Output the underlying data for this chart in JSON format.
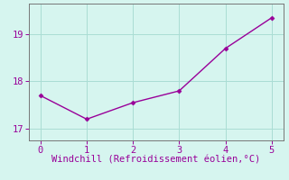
{
  "x": [
    0,
    1,
    2,
    3,
    4,
    5
  ],
  "y": [
    17.7,
    17.2,
    17.55,
    17.8,
    18.7,
    19.35
  ],
  "line_color": "#990099",
  "marker": "D",
  "marker_size": 2.5,
  "xlabel": "Windchill (Refroidissement éolien,°C)",
  "xlabel_color": "#990099",
  "xlabel_fontsize": 7.5,
  "xtick_labels": [
    "0",
    "1",
    "2",
    "3",
    "4",
    "5"
  ],
  "ytick_labels": [
    "17",
    "18",
    "19"
  ],
  "ytick_values": [
    17,
    18,
    19
  ],
  "ylim": [
    16.75,
    19.65
  ],
  "xlim": [
    -0.25,
    5.25
  ],
  "background_color": "#d6f5ef",
  "grid_color": "#aaddd4",
  "tick_color": "#990099",
  "tick_fontsize": 7.5,
  "line_width": 1.0,
  "spine_color": "#777777"
}
